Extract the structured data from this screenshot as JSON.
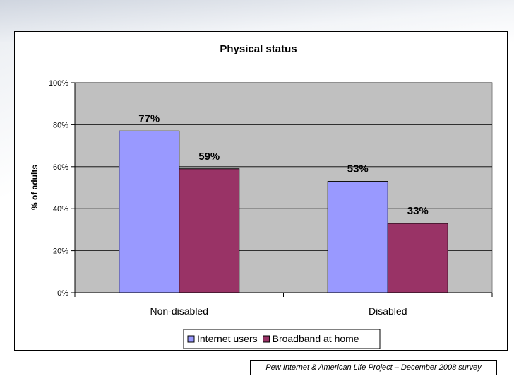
{
  "chart_data": {
    "type": "bar",
    "title": "Physical status",
    "ylabel": "% of adults",
    "xlabel": "",
    "categories": [
      "Non-disabled",
      "Disabled"
    ],
    "series": [
      {
        "name": "Internet users",
        "values": [
          77,
          53
        ],
        "color": "#9999ff"
      },
      {
        "name": "Broadband at home",
        "values": [
          59,
          33
        ],
        "color": "#993366"
      }
    ],
    "ylim": [
      0,
      100
    ],
    "yticks": [
      0,
      20,
      40,
      60,
      80,
      100
    ],
    "ytick_labels": [
      "0%",
      "20%",
      "40%",
      "60%",
      "80%",
      "100%"
    ],
    "data_labels": [
      [
        "77%",
        "53%"
      ],
      [
        "59%",
        "33%"
      ]
    ],
    "plot_background": "#c0c0c0",
    "grid": true,
    "legend_position": "bottom"
  },
  "footer": {
    "source": "Pew Internet & American Life Project – December 2008 survey"
  }
}
